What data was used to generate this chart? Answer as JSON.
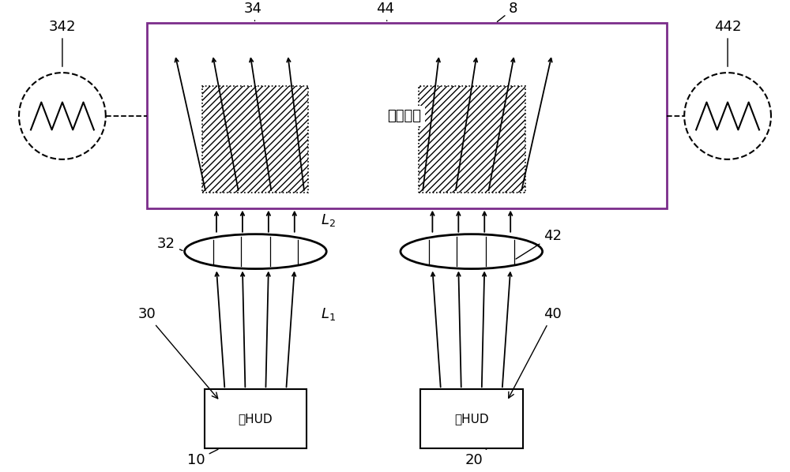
{
  "bg_color": "#ffffff",
  "line_color": "#000000",
  "purple_color": "#7B2D8B",
  "fig_width": 10.0,
  "fig_height": 5.98,
  "windshield_label": "挡风玻璃",
  "left_hud_label": "左HUD",
  "right_hud_label": "右HUD"
}
